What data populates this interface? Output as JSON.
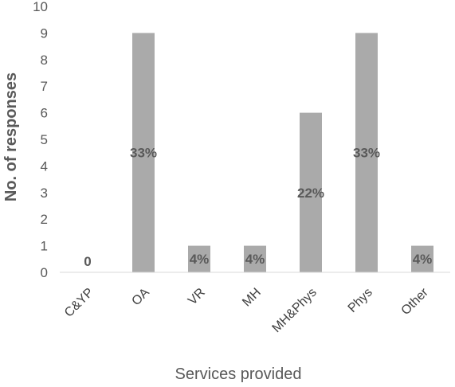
{
  "chart_data": {
    "type": "bar",
    "categories": [
      "C&YP",
      "OA",
      "VR",
      "MH",
      "MH&Phys",
      "Phys",
      "Other"
    ],
    "values": [
      0,
      9,
      1,
      1,
      6,
      9,
      1
    ],
    "data_labels": [
      "0",
      "33%",
      "4%",
      "4%",
      "22%",
      "33%",
      "4%"
    ],
    "xlabel": "Services provided",
    "ylabel": "No. of responses",
    "ylim": [
      0,
      10
    ],
    "yticks": [
      0,
      1,
      2,
      3,
      4,
      5,
      6,
      7,
      8,
      9,
      10
    ],
    "grid": false,
    "legend": "none",
    "bar_color": "#aaaaaa"
  }
}
